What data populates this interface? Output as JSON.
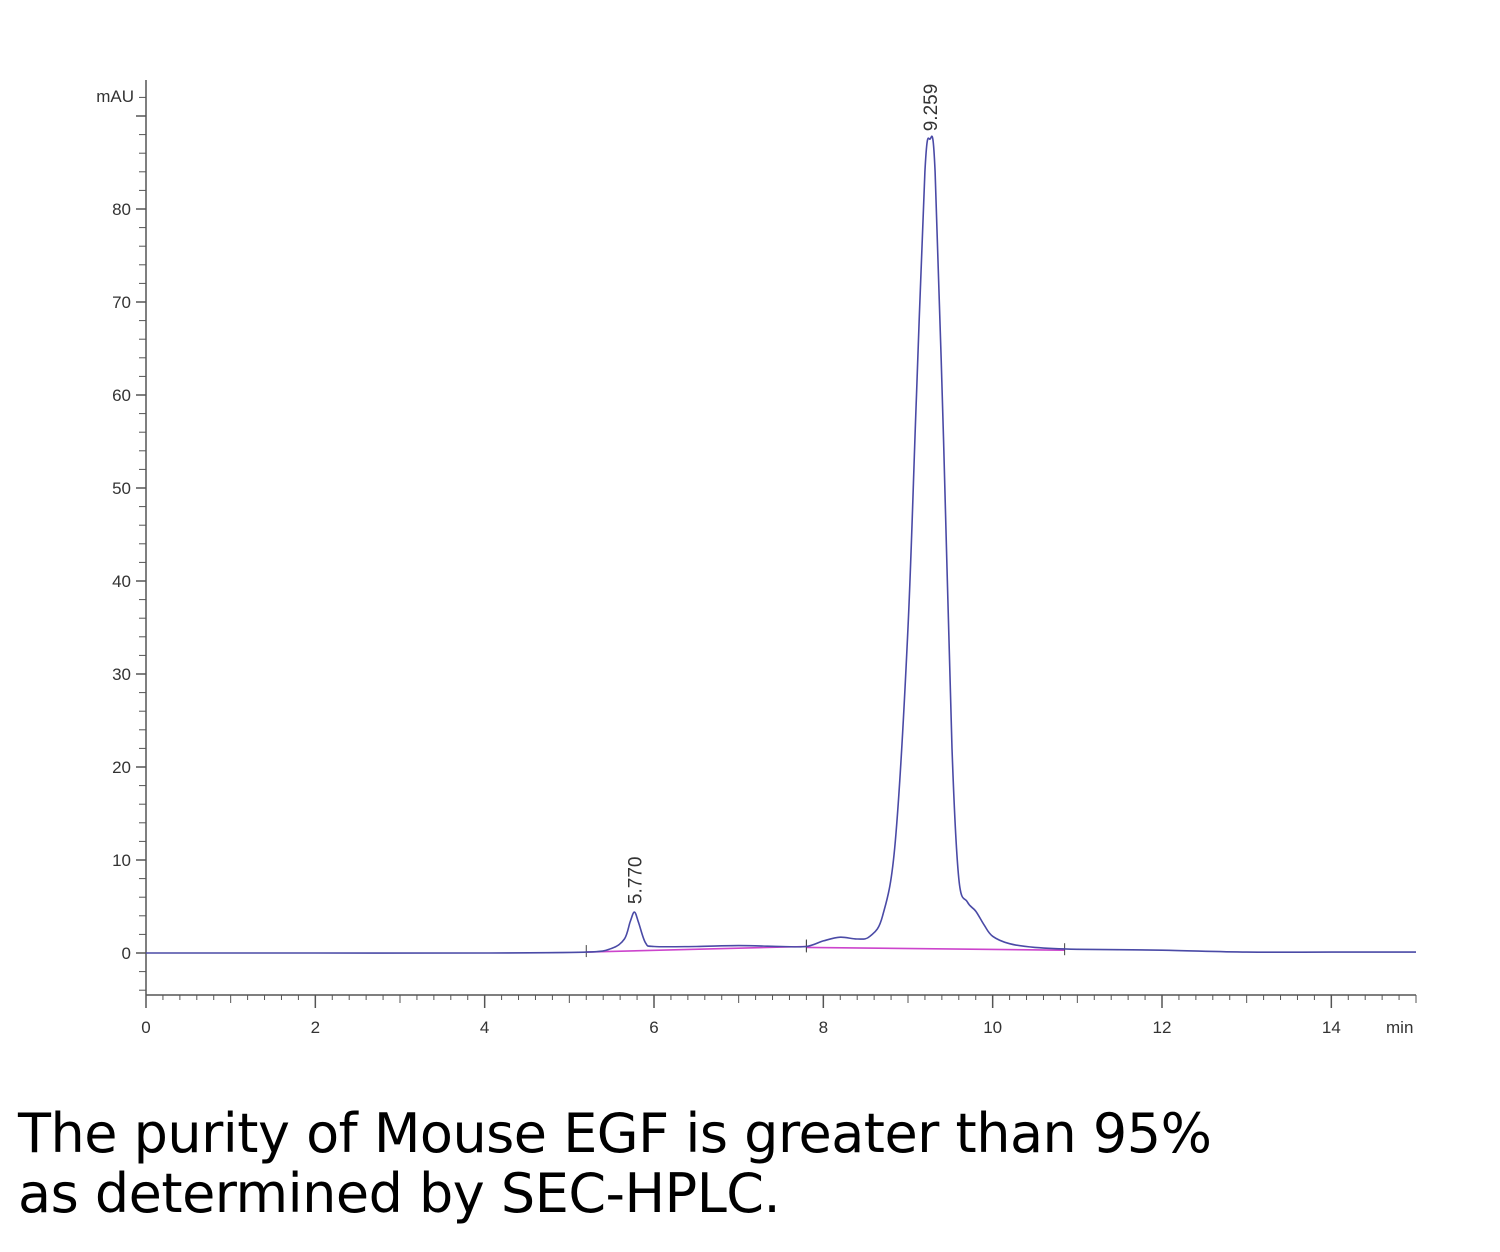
{
  "chart_data": {
    "type": "line",
    "xunit": "min",
    "yunit": "mAU",
    "xlim": [
      0,
      15
    ],
    "ylim": [
      -4.5,
      94
    ],
    "xticks": [
      0,
      2,
      4,
      6,
      8,
      10,
      12,
      14
    ],
    "yticks": [
      0,
      10,
      20,
      30,
      40,
      50,
      60,
      70,
      80
    ],
    "grid": false,
    "colors": {
      "trace": "#4a4aa6",
      "baseline": "#cc44cc"
    },
    "peak_labels": [
      "5.770",
      "9.259"
    ],
    "peaks": [
      {
        "time": 5.77,
        "height": 4.4,
        "label": "5.770"
      },
      {
        "time": 9.259,
        "height": 87.5,
        "label": "9.259"
      }
    ],
    "baselines": [
      {
        "x": [
          5.2,
          7.8
        ],
        "y": [
          0.1,
          0.7
        ]
      },
      {
        "x": [
          7.8,
          10.85
        ],
        "y": [
          0.6,
          0.3
        ]
      }
    ],
    "series": [
      {
        "x": [
          0,
          2.0,
          4.0,
          5.2,
          5.5,
          5.65,
          5.72,
          5.77,
          5.82,
          5.9,
          6.0,
          6.5,
          7.0,
          7.5,
          7.8,
          8.0,
          8.2,
          8.4,
          8.55,
          8.7,
          8.85,
          9.0,
          9.1,
          9.2,
          9.259,
          9.32,
          9.42,
          9.52,
          9.6,
          9.7,
          9.8,
          9.9,
          10.0,
          10.2,
          10.5,
          11.0,
          12.0,
          13.0,
          14.0,
          15.0
        ],
        "y": [
          0,
          0,
          0,
          0.1,
          0.5,
          1.5,
          3.4,
          4.4,
          3.2,
          1.1,
          0.7,
          0.7,
          0.8,
          0.7,
          0.7,
          1.3,
          1.7,
          1.5,
          1.8,
          4.0,
          12.0,
          35.0,
          60.0,
          84.0,
          87.5,
          84.0,
          55.0,
          22.0,
          8.0,
          5.5,
          4.5,
          3.0,
          1.8,
          1.0,
          0.6,
          0.4,
          0.3,
          0.1,
          0.1,
          0.1
        ]
      }
    ]
  },
  "caption": {
    "line1": "The purity of Mouse EGF is greater than 95%",
    "line2": "as determined by SEC-HPLC."
  }
}
